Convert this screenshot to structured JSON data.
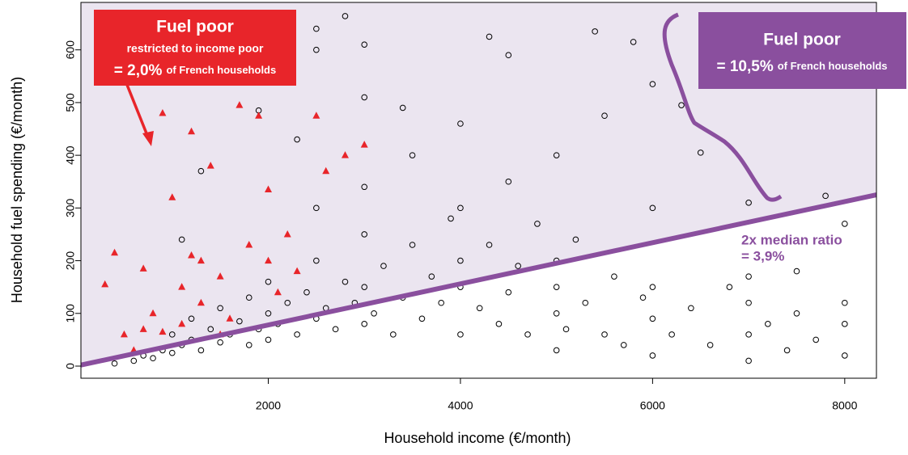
{
  "chart_data": {
    "type": "scatter",
    "x_label": "Household income (€/month)",
    "y_label": "Household fuel spending (€/month)",
    "xlim": [
      50,
      8330
    ],
    "ylim": [
      -23,
      690
    ],
    "xticks": [
      2000,
      4000,
      6000,
      8000
    ],
    "yticks": [
      0,
      100,
      200,
      300,
      400,
      500,
      600
    ],
    "shade_color": "#ebe5f0",
    "series": [
      {
        "color": "#000000",
        "marker": "circle",
        "x": [
          400,
          600,
          700,
          800,
          900,
          1000,
          1000,
          1100,
          1200,
          1200,
          1300,
          1400,
          1500,
          1500,
          1600,
          1700,
          1800,
          1800,
          1900,
          2000,
          2000,
          2000,
          2100,
          2200,
          2300,
          2400,
          2500,
          2500,
          2500,
          2500,
          2500,
          2600,
          2700,
          2800,
          2800,
          2900,
          3000,
          3000,
          3000,
          3000,
          3000,
          3000,
          3100,
          3200,
          3300,
          3400,
          3400,
          3500,
          3500,
          3600,
          3700,
          3800,
          3900,
          4000,
          4000,
          4000,
          4000,
          4000,
          4200,
          4300,
          4300,
          4400,
          4500,
          4500,
          4500,
          4600,
          4700,
          4800,
          5000,
          5000,
          5000,
          5000,
          5000,
          5100,
          5200,
          5300,
          5400,
          5500,
          5500,
          5600,
          5700,
          5800,
          5900,
          6000,
          6000,
          6000,
          6000,
          6000,
          6200,
          6300,
          6400,
          6500,
          6600,
          6800,
          7000,
          7000,
          7000,
          7000,
          7000,
          7200,
          7400,
          7500,
          7500,
          7700,
          7800,
          8000,
          8000,
          8000,
          8000,
          1900,
          2300,
          1100,
          1300
        ],
        "y": [
          5,
          10,
          20,
          15,
          30,
          25,
          60,
          40,
          50,
          90,
          30,
          70,
          45,
          110,
          60,
          85,
          40,
          130,
          70,
          50,
          100,
          160,
          80,
          120,
          60,
          140,
          90,
          200,
          300,
          600,
          640,
          110,
          70,
          160,
          664,
          120,
          80,
          150,
          250,
          340,
          610,
          510,
          100,
          190,
          60,
          130,
          490,
          230,
          400,
          90,
          170,
          120,
          280,
          60,
          150,
          200,
          300,
          460,
          110,
          230,
          625,
          80,
          140,
          350,
          590,
          190,
          60,
          270,
          30,
          100,
          150,
          200,
          400,
          70,
          240,
          120,
          635,
          60,
          475,
          170,
          40,
          615,
          130,
          20,
          90,
          150,
          300,
          535,
          60,
          495,
          110,
          405,
          40,
          150,
          10,
          60,
          120,
          170,
          310,
          80,
          30,
          100,
          180,
          50,
          323,
          20,
          80,
          120,
          270,
          485,
          430,
          240,
          370
        ]
      },
      {
        "color": "#e8252a",
        "marker": "triangle",
        "x": [
          300,
          400,
          500,
          600,
          700,
          800,
          900,
          1000,
          1100,
          1200,
          1200,
          1300,
          1400,
          1500,
          1600,
          1700,
          1800,
          1900,
          2000,
          2100,
          2200,
          2300,
          2500,
          2600,
          2800,
          3000,
          1100,
          1500,
          900,
          700,
          1300,
          2000
        ],
        "y": [
          155,
          215,
          60,
          30,
          185,
          100,
          480,
          320,
          150,
          445,
          210,
          120,
          380,
          170,
          90,
          495,
          230,
          475,
          335,
          140,
          250,
          180,
          475,
          370,
          400,
          420,
          80,
          60,
          65,
          70,
          200,
          200
        ]
      },
      {
        "color": "#8a4f9e",
        "marker": "line",
        "x": [
          50,
          8330
        ],
        "y": [
          2,
          325
        ]
      }
    ],
    "annotations": {
      "red_box": {
        "color": "#e8252a",
        "title": "Fuel poor",
        "subtitle": "restricted to income poor",
        "value": "= 2,0%",
        "suffix": "of French households"
      },
      "purple_box": {
        "color": "#8a4f9e",
        "title": "Fuel poor",
        "value": "= 10,5%",
        "suffix": "of French households"
      },
      "line_label": {
        "title": "2x median ratio",
        "value": "= 3,9%"
      }
    }
  }
}
